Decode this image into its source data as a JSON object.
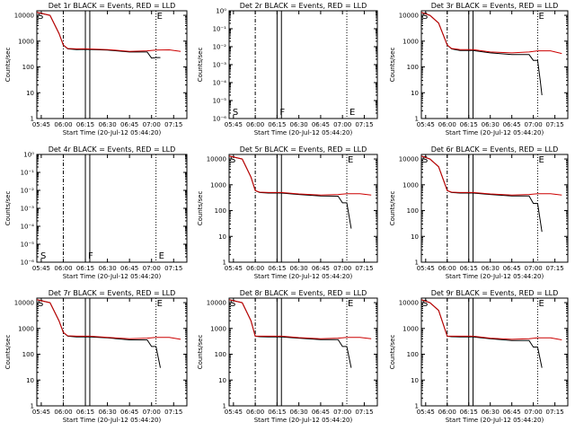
{
  "panel_titles": [
    "Det 1r BLACK = Events, RED = LLD",
    "Det 2r BLACK = Events, RED = LLD",
    "Det 3r BLACK = Events, RED = LLD",
    "Det 4r BLACK = Events, RED = LLD",
    "Det 5r BLACK = Events, RED = LLD",
    "Det 6r BLACK = Events, RED = LLD",
    "Det 7r BLACK = Events, RED = LLD",
    "Det 8r BLACK = Events, RED = LLD",
    "Det 9r BLACK = Events, RED = LLD"
  ],
  "axis": {
    "xlabel": "Start Time (20-Jul-12 05:44:20)",
    "ylabel": "Counts/sec",
    "x_ticks": [
      "05:45",
      "06:00",
      "06:15",
      "06:30",
      "06:45",
      "07:00",
      "07:15"
    ],
    "y_ticks_normal": [
      "1",
      "10",
      "100",
      "1000",
      "10000"
    ],
    "y_ticks_small": [
      "10⁻⁶",
      "10⁻⁵",
      "10⁻⁴",
      "10⁻³",
      "10⁻²",
      "10⁻¹",
      "10⁰"
    ]
  },
  "markers": {
    "s": "S",
    "f": "F",
    "e": "E"
  },
  "colors": {
    "events": "#000000",
    "lld": "#cc0000"
  },
  "chart_data": [
    {
      "type": "line",
      "title": "Det 1r BLACK = Events, RED = LLD",
      "xlabel": "Start Time (20-Jul-12 05:44:20)",
      "ylabel": "Counts/sec",
      "ylim": [
        1,
        15000
      ],
      "yscale": "log",
      "series": [
        {
          "name": "Events",
          "x": [
            5.7,
            5.85,
            5.95,
            6.0,
            6.05,
            6.15,
            6.25,
            6.5,
            6.75,
            6.95,
            7.0,
            7.05,
            7.1
          ],
          "y": [
            13000,
            10000,
            2000,
            700,
            500,
            470,
            480,
            450,
            380,
            380,
            220,
            230,
            230
          ]
        },
        {
          "name": "LLD",
          "x": [
            5.7,
            5.85,
            5.95,
            6.0,
            6.05,
            6.15,
            6.25,
            6.5,
            6.75,
            6.95,
            7.05,
            7.2,
            7.33
          ],
          "y": [
            13000,
            10000,
            2000,
            700,
            520,
            500,
            500,
            470,
            400,
            420,
            450,
            460,
            400
          ]
        }
      ]
    },
    {
      "type": "line",
      "title": "Det 2r BLACK = Events, RED = LLD",
      "xlabel": "Start Time (20-Jul-12 05:44:20)",
      "ylabel": "Counts/sec",
      "ylim": [
        1e-06,
        1
      ],
      "yscale": "log",
      "series": []
    },
    {
      "type": "line",
      "title": "Det 3r BLACK = Events, RED = LLD",
      "xlabel": "Start Time (20-Jul-12 05:44:20)",
      "ylabel": "Counts/sec",
      "ylim": [
        1,
        15000
      ],
      "yscale": "log",
      "series": [
        {
          "name": "Events",
          "x": [
            5.7,
            5.8,
            5.9,
            6.0,
            6.05,
            6.15,
            6.3,
            6.5,
            6.75,
            6.95,
            7.0,
            7.05,
            7.08,
            7.1
          ],
          "y": [
            13000,
            10000,
            5000,
            700,
            500,
            430,
            430,
            350,
            300,
            300,
            180,
            180,
            30,
            8
          ]
        },
        {
          "name": "LLD",
          "x": [
            5.7,
            5.8,
            5.9,
            6.0,
            6.05,
            6.15,
            6.3,
            6.5,
            6.75,
            6.95,
            7.05,
            7.2,
            7.33
          ],
          "y": [
            13000,
            10000,
            5000,
            700,
            520,
            470,
            470,
            380,
            350,
            380,
            420,
            420,
            330
          ]
        }
      ]
    },
    {
      "type": "line",
      "title": "Det 4r BLACK = Events, RED = LLD",
      "xlabel": "Start Time (20-Jul-12 05:44:20)",
      "ylabel": "Counts/sec",
      "ylim": [
        1e-06,
        1
      ],
      "yscale": "log",
      "series": []
    },
    {
      "type": "line",
      "title": "Det 5r BLACK = Events, RED = LLD",
      "xlabel": "Start Time (20-Jul-12 05:44:20)",
      "ylabel": "Counts/sec",
      "ylim": [
        1,
        15000
      ],
      "yscale": "log",
      "series": [
        {
          "name": "Events",
          "x": [
            5.7,
            5.85,
            5.95,
            6.0,
            6.05,
            6.15,
            6.3,
            6.5,
            6.75,
            6.95,
            7.0,
            7.05,
            7.1
          ],
          "y": [
            13000,
            10000,
            2000,
            600,
            500,
            480,
            480,
            420,
            370,
            360,
            200,
            200,
            20
          ]
        },
        {
          "name": "LLD",
          "x": [
            5.7,
            5.85,
            5.95,
            6.0,
            6.05,
            6.15,
            6.3,
            6.5,
            6.75,
            6.95,
            7.05,
            7.2,
            7.33
          ],
          "y": [
            13000,
            10000,
            2000,
            600,
            520,
            500,
            500,
            440,
            400,
            420,
            450,
            450,
            400
          ]
        }
      ]
    },
    {
      "type": "line",
      "title": "Det 6r BLACK = Events, RED = LLD",
      "xlabel": "Start Time (20-Jul-12 05:44:20)",
      "ylabel": "Counts/sec",
      "ylim": [
        1,
        15000
      ],
      "yscale": "log",
      "series": [
        {
          "name": "Events",
          "x": [
            5.7,
            5.8,
            5.9,
            6.0,
            6.05,
            6.15,
            6.3,
            6.5,
            6.75,
            6.95,
            7.0,
            7.05,
            7.1
          ],
          "y": [
            13000,
            10000,
            5000,
            600,
            500,
            480,
            480,
            420,
            370,
            370,
            190,
            190,
            15
          ]
        },
        {
          "name": "LLD",
          "x": [
            5.7,
            5.8,
            5.9,
            6.0,
            6.05,
            6.15,
            6.3,
            6.5,
            6.75,
            6.95,
            7.05,
            7.2,
            7.33
          ],
          "y": [
            13000,
            10000,
            5000,
            600,
            520,
            500,
            500,
            440,
            400,
            420,
            450,
            450,
            400
          ]
        }
      ]
    },
    {
      "type": "line",
      "title": "Det 7r BLACK = Events, RED = LLD",
      "xlabel": "Start Time (20-Jul-12 05:44:20)",
      "ylabel": "Counts/sec",
      "ylim": [
        1,
        15000
      ],
      "yscale": "log",
      "series": [
        {
          "name": "Events",
          "x": [
            5.7,
            5.85,
            5.95,
            6.0,
            6.05,
            6.15,
            6.3,
            6.5,
            6.75,
            6.95,
            7.0,
            7.05,
            7.1
          ],
          "y": [
            13000,
            10000,
            2000,
            700,
            500,
            470,
            470,
            430,
            360,
            360,
            200,
            200,
            30
          ]
        },
        {
          "name": "LLD",
          "x": [
            5.7,
            5.85,
            5.95,
            6.0,
            6.05,
            6.15,
            6.3,
            6.5,
            6.75,
            6.95,
            7.05,
            7.2,
            7.33
          ],
          "y": [
            13000,
            10000,
            2000,
            700,
            520,
            500,
            500,
            450,
            400,
            420,
            450,
            450,
            380
          ]
        }
      ]
    },
    {
      "type": "line",
      "title": "Det 8r BLACK = Events, RED = LLD",
      "xlabel": "Start Time (20-Jul-12 05:44:20)",
      "ylabel": "Counts/sec",
      "ylim": [
        1,
        15000
      ],
      "yscale": "log",
      "series": [
        {
          "name": "Events",
          "x": [
            5.7,
            5.85,
            5.95,
            6.0,
            6.05,
            6.15,
            6.3,
            6.5,
            6.75,
            6.95,
            7.0,
            7.05,
            7.1
          ],
          "y": [
            13000,
            10000,
            2000,
            500,
            480,
            470,
            470,
            420,
            370,
            370,
            200,
            200,
            30
          ]
        },
        {
          "name": "LLD",
          "x": [
            5.7,
            5.85,
            5.95,
            6.0,
            6.05,
            6.15,
            6.3,
            6.5,
            6.75,
            6.95,
            7.05,
            7.2,
            7.33
          ],
          "y": [
            13000,
            10000,
            2000,
            500,
            500,
            500,
            500,
            440,
            400,
            420,
            450,
            450,
            400
          ]
        }
      ]
    },
    {
      "type": "line",
      "title": "Det 9r BLACK = Events, RED = LLD",
      "xlabel": "Start Time (20-Jul-12 05:44:20)",
      "ylabel": "Counts/sec",
      "ylim": [
        1,
        15000
      ],
      "yscale": "log",
      "series": [
        {
          "name": "Events",
          "x": [
            5.7,
            5.8,
            5.9,
            6.0,
            6.05,
            6.15,
            6.3,
            6.5,
            6.75,
            6.95,
            7.0,
            7.05,
            7.1
          ],
          "y": [
            13000,
            10000,
            5000,
            500,
            480,
            470,
            470,
            400,
            340,
            340,
            190,
            190,
            30
          ]
        },
        {
          "name": "LLD",
          "x": [
            5.7,
            5.8,
            5.9,
            6.0,
            6.05,
            6.15,
            6.3,
            6.5,
            6.75,
            6.95,
            7.05,
            7.2,
            7.33
          ],
          "y": [
            13000,
            10000,
            5000,
            500,
            500,
            500,
            500,
            420,
            380,
            400,
            430,
            430,
            360
          ]
        }
      ]
    }
  ]
}
